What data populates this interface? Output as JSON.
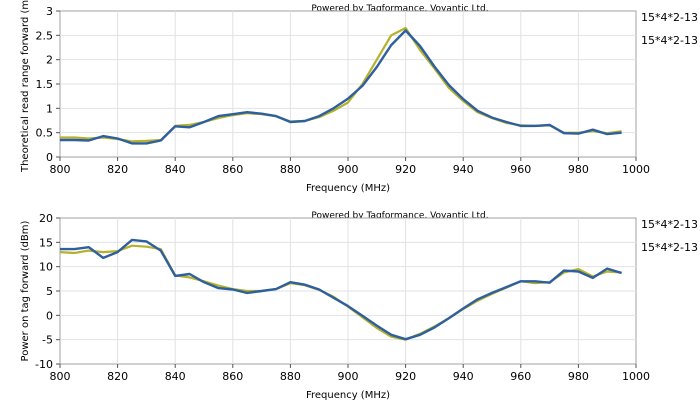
{
  "chart_data": [
    {
      "type": "line",
      "credit": "Powered by Tagformance, Voyantic Ltd.",
      "xlabel": "Frequency (MHz)",
      "ylabel": "Theoretical read range forward (m)",
      "xlim": [
        800,
        1000
      ],
      "ylim": [
        0,
        3
      ],
      "xticks": [
        800,
        820,
        840,
        860,
        880,
        900,
        920,
        940,
        960,
        980,
        1000
      ],
      "yticks": [
        0,
        0.5,
        1,
        1.5,
        2,
        2.5,
        3
      ],
      "legend_placement": "right",
      "x": [
        800,
        805,
        810,
        815,
        820,
        825,
        830,
        835,
        840,
        845,
        850,
        855,
        860,
        865,
        870,
        875,
        880,
        885,
        890,
        895,
        900,
        905,
        910,
        915,
        920,
        925,
        930,
        935,
        940,
        945,
        950,
        955,
        960,
        965,
        970,
        975,
        980,
        985,
        990,
        995
      ],
      "series": [
        {
          "name": "15*4*2-13",
          "color": "#b5b12c",
          "values": [
            0.4,
            0.4,
            0.38,
            0.4,
            0.37,
            0.32,
            0.33,
            0.35,
            0.64,
            0.66,
            0.72,
            0.8,
            0.86,
            0.9,
            0.88,
            0.84,
            0.73,
            0.74,
            0.82,
            0.95,
            1.12,
            1.5,
            2.0,
            2.5,
            2.65,
            2.2,
            1.82,
            1.42,
            1.15,
            0.92,
            0.8,
            0.7,
            0.65,
            0.64,
            0.65,
            0.5,
            0.5,
            0.53,
            0.49,
            0.53
          ]
        },
        {
          "name": "15*4*2-13",
          "color": "#2e5f9e",
          "values": [
            0.35,
            0.35,
            0.34,
            0.43,
            0.38,
            0.28,
            0.28,
            0.34,
            0.63,
            0.61,
            0.72,
            0.84,
            0.88,
            0.92,
            0.89,
            0.84,
            0.72,
            0.74,
            0.84,
            1.0,
            1.2,
            1.46,
            1.85,
            2.3,
            2.6,
            2.28,
            1.86,
            1.48,
            1.19,
            0.95,
            0.81,
            0.72,
            0.64,
            0.64,
            0.66,
            0.49,
            0.48,
            0.56,
            0.47,
            0.5
          ]
        }
      ]
    },
    {
      "type": "line",
      "credit": "Powered by Tagformance, Voyantic Ltd.",
      "xlabel": "Frequency (MHz)",
      "ylabel": "Power on tag forward (dBm)",
      "xlim": [
        800,
        1000
      ],
      "ylim": [
        -10,
        20
      ],
      "xticks": [
        800,
        820,
        840,
        860,
        880,
        900,
        920,
        940,
        960,
        980,
        1000
      ],
      "yticks": [
        -10,
        -5,
        0,
        5,
        10,
        15,
        20
      ],
      "legend_placement": "right",
      "x": [
        800,
        805,
        810,
        815,
        820,
        825,
        830,
        835,
        840,
        845,
        850,
        855,
        860,
        865,
        870,
        875,
        880,
        885,
        890,
        895,
        900,
        905,
        910,
        915,
        920,
        925,
        930,
        935,
        940,
        945,
        950,
        955,
        960,
        965,
        970,
        975,
        980,
        985,
        990,
        995
      ],
      "series": [
        {
          "name": "15*4*2-13",
          "color": "#b5b12c",
          "values": [
            13.0,
            12.8,
            13.3,
            13.0,
            13.2,
            14.3,
            14.1,
            13.6,
            8.2,
            7.8,
            7.0,
            6.1,
            5.4,
            5.0,
            5.0,
            5.4,
            6.6,
            6.2,
            5.2,
            3.8,
            1.8,
            -0.4,
            -2.6,
            -4.4,
            -5.0,
            -3.8,
            -2.3,
            -0.6,
            1.3,
            3.0,
            4.4,
            5.7,
            7.0,
            6.6,
            6.8,
            8.8,
            9.5,
            8.0,
            9.0,
            8.8
          ]
        },
        {
          "name": "15*4*2-13",
          "color": "#2e5f9e",
          "values": [
            13.6,
            13.6,
            14.0,
            11.8,
            13.0,
            15.5,
            15.2,
            13.3,
            8.1,
            8.5,
            6.8,
            5.6,
            5.3,
            4.6,
            5.0,
            5.4,
            6.8,
            6.3,
            5.3,
            3.6,
            1.9,
            -0.1,
            -2.1,
            -4.0,
            -4.9,
            -4.0,
            -2.5,
            -0.6,
            1.4,
            3.3,
            4.6,
            5.8,
            7.0,
            7.0,
            6.7,
            9.2,
            9.0,
            7.7,
            9.6,
            8.7
          ]
        }
      ]
    }
  ]
}
